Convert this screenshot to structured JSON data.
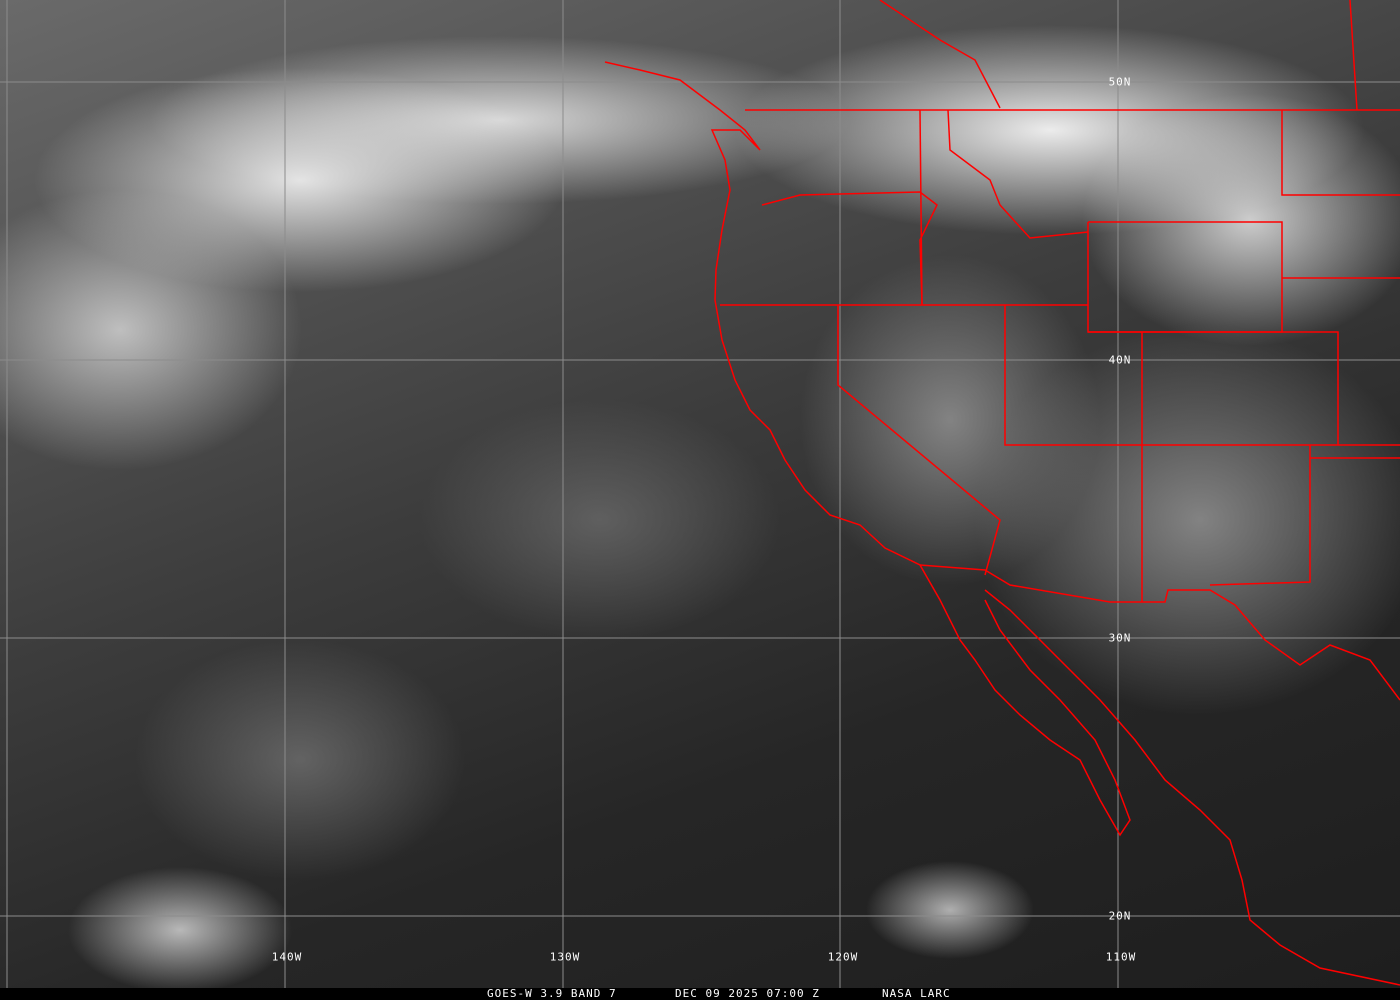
{
  "map": {
    "grid_color": "#8c8c8c",
    "border_color": "#ff0000",
    "lat_labels": [
      "50N",
      "40N",
      "30N",
      "20N"
    ],
    "lon_labels": [
      "140W",
      "130W",
      "120W",
      "110W"
    ]
  },
  "footer": {
    "product": "GOES-W 3.9 BAND 7",
    "datetime": "DEC 09 2025 07:00 Z",
    "source": "NASA LARC"
  }
}
